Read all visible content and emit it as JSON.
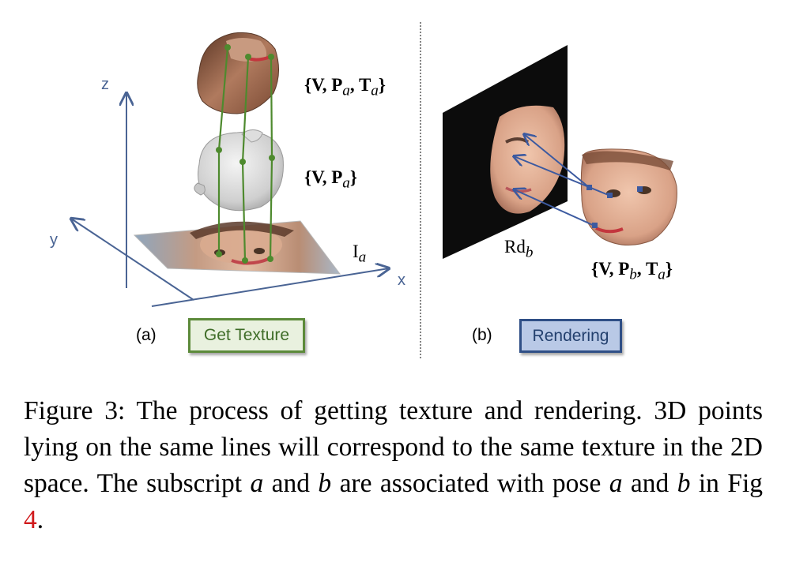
{
  "panel_a": {
    "axis_z": "z",
    "axis_y": "y",
    "axis_x": "x",
    "label_top": "{V, P_a, T_a}",
    "label_mid": "{V, P_a}",
    "label_img": "I_a",
    "panel_label": "(a)",
    "button": "Get Texture"
  },
  "panel_b": {
    "label_render": "Rd_b",
    "label_face": "{V, P_b, T_a}",
    "panel_label": "(b)",
    "button": "Rendering"
  },
  "caption": {
    "prefix": "Figure 3: ",
    "text_1": "The process of getting texture and rendering. 3D points lying on the same lines will correspond to the same texture in the 2D space. The subscript ",
    "sym_a": "a",
    "and": " and ",
    "sym_b": "b",
    "text_2": " are associated with pose ",
    "text_3": " in Fig ",
    "fig_ref": "4",
    "end": "."
  },
  "colors": {
    "axis": "#4a6494",
    "green_line": "#4e8a2e",
    "blue_arrow": "#3c5aa0",
    "ref_red": "#d0191b"
  }
}
